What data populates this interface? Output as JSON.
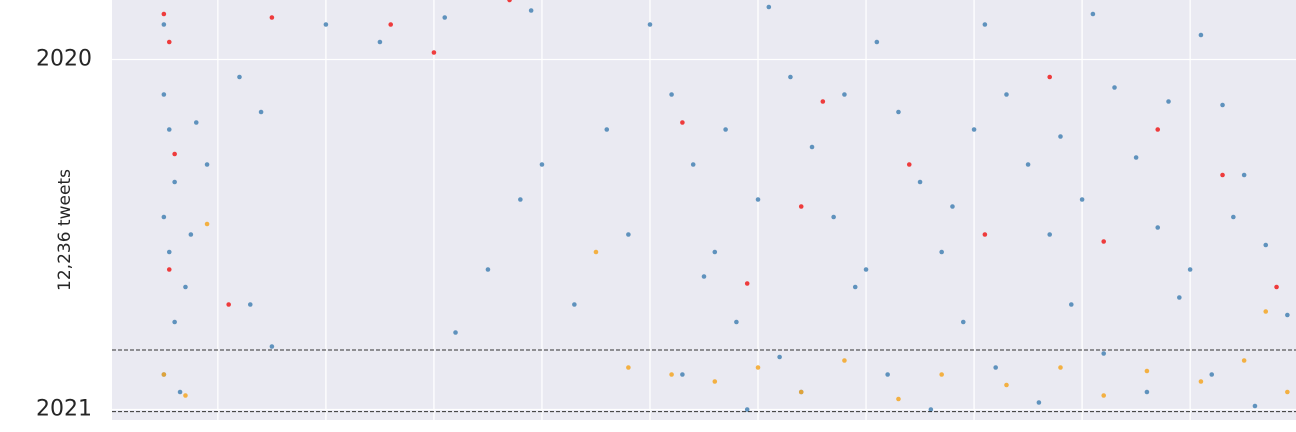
{
  "chart_data": {
    "type": "scatter",
    "ylabel": "12,236 tweets",
    "xlim": [
      0.02,
      10.98
    ],
    "xticks": [
      1,
      2,
      3,
      4,
      5,
      6,
      7,
      8,
      9,
      10
    ],
    "ylim": [
      2019.83,
      2021.03
    ],
    "yticks": [
      2020,
      2021
    ],
    "y_inverted": true,
    "grid": true,
    "hlines": [
      2020.83,
      2021.006
    ],
    "series": [
      {
        "color": "#4682b4",
        "x": [
          0.5,
          0.5,
          0.55,
          0.6,
          0.5,
          0.55,
          0.7,
          0.6,
          0.5,
          0.65,
          0.8,
          0.9,
          0.75,
          1.2,
          1.4,
          1.3,
          1.5,
          2.0,
          2.5,
          3.2,
          3.5,
          3.8,
          4.0,
          4.3,
          4.6,
          4.8,
          3.1,
          3.9,
          5.0,
          5.2,
          5.4,
          5.6,
          5.8,
          5.3,
          5.9,
          6.1,
          6.3,
          6.5,
          6.7,
          6.9,
          6.2,
          6.4,
          7.1,
          7.3,
          7.5,
          7.7,
          7.9,
          7.2,
          7.6,
          8.1,
          8.3,
          8.5,
          8.7,
          8.9,
          8.2,
          8.6,
          9.1,
          9.3,
          9.5,
          9.7,
          9.9,
          9.2,
          9.6,
          10.1,
          10.3,
          10.5,
          10.7,
          10.9,
          10.2,
          10.6,
          5.5,
          6.0,
          7.0,
          8.0,
          9.0,
          10.0,
          5.7,
          6.8,
          7.8,
          8.8,
          9.8,
          10.4
        ],
        "values": [
          2019.9,
          2020.1,
          2020.2,
          2020.35,
          2020.45,
          2020.55,
          2020.65,
          2020.75,
          2020.9,
          2020.95,
          2020.18,
          2020.3,
          2020.5,
          2020.05,
          2020.15,
          2020.7,
          2020.82,
          2019.9,
          2019.95,
          2020.78,
          2020.6,
          2020.4,
          2020.3,
          2020.7,
          2020.2,
          2020.5,
          2019.88,
          2019.86,
          2019.9,
          2020.1,
          2020.3,
          2020.55,
          2020.75,
          2020.9,
          2021.0,
          2019.85,
          2020.05,
          2020.25,
          2020.45,
          2020.65,
          2020.85,
          2020.95,
          2019.95,
          2020.15,
          2020.35,
          2020.55,
          2020.75,
          2020.9,
          2021.0,
          2019.9,
          2020.1,
          2020.3,
          2020.5,
          2020.7,
          2020.88,
          2020.98,
          2019.87,
          2020.08,
          2020.28,
          2020.48,
          2020.68,
          2020.84,
          2020.95,
          2019.93,
          2020.13,
          2020.33,
          2020.53,
          2020.73,
          2020.9,
          2020.99,
          2020.62,
          2020.4,
          2020.6,
          2020.2,
          2020.4,
          2020.6,
          2020.2,
          2020.1,
          2020.42,
          2020.22,
          2020.12,
          2020.45
        ]
      },
      {
        "color": "#ee1c1c",
        "x": [
          0.5,
          0.55,
          1.5,
          2.6,
          3.0,
          3.7,
          0.6,
          0.55,
          1.1,
          5.3,
          5.9,
          6.6,
          7.4,
          8.1,
          8.7,
          9.2,
          10.3,
          10.8,
          6.4,
          9.7
        ],
        "values": [
          2019.87,
          2019.95,
          2019.88,
          2019.9,
          2019.98,
          2019.83,
          2020.27,
          2020.6,
          2020.7,
          2020.18,
          2020.64,
          2020.12,
          2020.3,
          2020.5,
          2020.05,
          2020.52,
          2020.33,
          2020.65,
          2020.42,
          2020.2
        ]
      },
      {
        "color": "#f5a623",
        "x": [
          0.5,
          0.7,
          0.9,
          4.5,
          4.8,
          5.2,
          5.6,
          6.0,
          6.4,
          6.8,
          7.3,
          7.7,
          8.3,
          8.8,
          9.2,
          9.6,
          10.1,
          10.5,
          10.9,
          10.7
        ],
        "values": [
          2020.9,
          2020.96,
          2020.47,
          2020.55,
          2020.88,
          2020.9,
          2020.92,
          2020.88,
          2020.95,
          2020.86,
          2020.97,
          2020.9,
          2020.93,
          2020.88,
          2020.96,
          2020.89,
          2020.92,
          2020.86,
          2020.95,
          2020.72
        ]
      }
    ]
  }
}
